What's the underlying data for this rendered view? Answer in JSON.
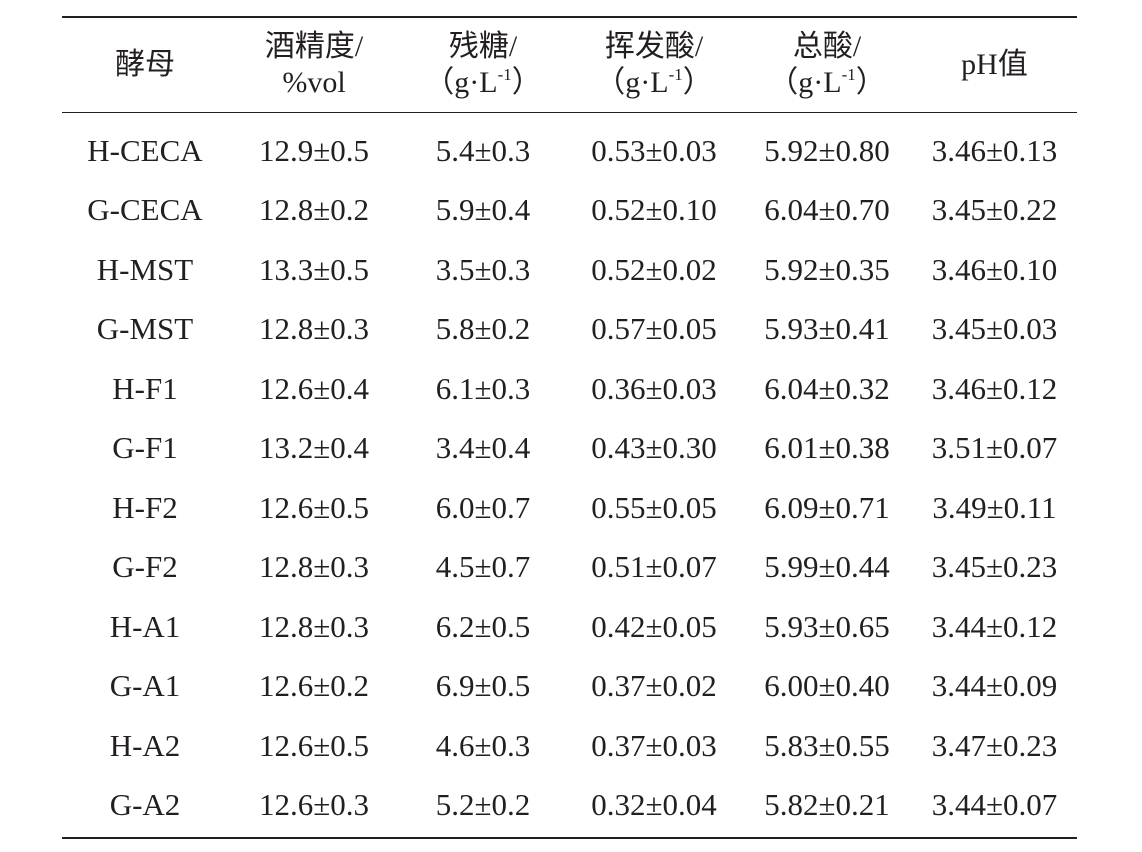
{
  "table": {
    "headers": [
      {
        "line1": "酵母",
        "line2": "",
        "sup": "",
        "close": ""
      },
      {
        "line1": "酒精度/",
        "line2": "%vol",
        "sup": "",
        "close": ""
      },
      {
        "line1": "残糖/",
        "line2": "（g·L",
        "sup": "-1",
        "close": "）"
      },
      {
        "line1": "挥发酸/",
        "line2": "（g·L",
        "sup": "-1",
        "close": "）"
      },
      {
        "line1": "总酸/",
        "line2": "（g·L",
        "sup": "-1",
        "close": "）"
      },
      {
        "line1": "pH值",
        "line2": "",
        "sup": "",
        "close": ""
      }
    ],
    "rows": [
      [
        "H-CECA",
        "12.9±0.5",
        "5.4±0.3",
        "0.53±0.03",
        "5.92±0.80",
        "3.46±0.13"
      ],
      [
        "G-CECA",
        "12.8±0.2",
        "5.9±0.4",
        "0.52±0.10",
        "6.04±0.70",
        "3.45±0.22"
      ],
      [
        "H-MST",
        "13.3±0.5",
        "3.5±0.3",
        "0.52±0.02",
        "5.92±0.35",
        "3.46±0.10"
      ],
      [
        "G-MST",
        "12.8±0.3",
        "5.8±0.2",
        "0.57±0.05",
        "5.93±0.41",
        "3.45±0.03"
      ],
      [
        "H-F1",
        "12.6±0.4",
        "6.1±0.3",
        "0.36±0.03",
        "6.04±0.32",
        "3.46±0.12"
      ],
      [
        "G-F1",
        "13.2±0.4",
        "3.4±0.4",
        "0.43±0.30",
        "6.01±0.38",
        "3.51±0.07"
      ],
      [
        "H-F2",
        "12.6±0.5",
        "6.0±0.7",
        "0.55±0.05",
        "6.09±0.71",
        "3.49±0.11"
      ],
      [
        "G-F2",
        "12.8±0.3",
        "4.5±0.7",
        "0.51±0.07",
        "5.99±0.44",
        "3.45±0.23"
      ],
      [
        "H-A1",
        "12.8±0.3",
        "6.2±0.5",
        "0.42±0.05",
        "5.93±0.65",
        "3.44±0.12"
      ],
      [
        "G-A1",
        "12.6±0.2",
        "6.9±0.5",
        "0.37±0.02",
        "6.00±0.40",
        "3.44±0.09"
      ],
      [
        "H-A2",
        "12.6±0.5",
        "4.6±0.3",
        "0.37±0.03",
        "5.83±0.55",
        "3.47±0.23"
      ],
      [
        "G-A2",
        "12.6±0.3",
        "5.2±0.2",
        "0.32±0.04",
        "5.82±0.21",
        "3.44±0.07"
      ]
    ]
  }
}
